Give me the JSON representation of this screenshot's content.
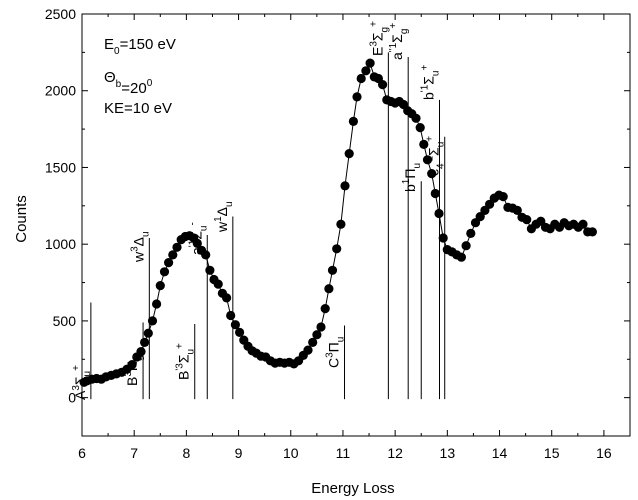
{
  "chart_data": {
    "type": "scatter",
    "title": "",
    "xlabel": "Energy Loss",
    "ylabel": "Counts",
    "xlim": [
      6,
      16.5
    ],
    "ylim": [
      -250,
      2500
    ],
    "x_ticks": [
      6,
      7,
      8,
      9,
      10,
      11,
      12,
      13,
      14,
      15,
      16
    ],
    "y_ticks": [
      0,
      500,
      1000,
      1500,
      2000,
      2500
    ],
    "x_tick_labels": [
      "6",
      "7",
      "8",
      "9",
      "10",
      "11",
      "12",
      "13",
      "14",
      "15",
      "16"
    ],
    "y_tick_labels": [
      "0",
      "500",
      "1000",
      "1500",
      "2000",
      "2500"
    ],
    "grid": false,
    "legend": "none",
    "marker_color": "#000000",
    "annotations": [
      "E0=150 eV",
      "Θb=20°",
      "KE=10 eV"
    ],
    "transitions": [
      {
        "label": "A3Σu+",
        "x": 6.17,
        "top": 620
      },
      {
        "label": "B3Πg",
        "x": 7.17,
        "top": 490
      },
      {
        "label": "w3Δu",
        "x": 7.29,
        "top": 1040
      },
      {
        "label": "B'3Σu+",
        "x": 8.16,
        "top": 480
      },
      {
        "label": "a'1Σu-",
        "x": 8.4,
        "top": 1060
      },
      {
        "label": "w1Δu",
        "x": 8.89,
        "top": 1180
      },
      {
        "label": "C3Πu",
        "x": 11.03,
        "top": 470
      },
      {
        "label": "E3Σg+",
        "x": 11.87,
        "top": 2250
      },
      {
        "label": "a''1Σg+",
        "x": 12.25,
        "top": 2220
      },
      {
        "label": "b1Πu",
        "x": 12.5,
        "top": 1410
      },
      {
        "label": "b'1Σu+",
        "x": 12.85,
        "top": 1940
      },
      {
        "label": "c4'1Σu+",
        "x": 12.95,
        "top": 1700
      }
    ],
    "series": [
      {
        "marker": "circle",
        "points": [
          [
            6.04,
            100
          ],
          [
            6.1,
            110
          ],
          [
            6.19,
            120
          ],
          [
            6.28,
            125
          ],
          [
            6.37,
            120
          ],
          [
            6.46,
            135
          ],
          [
            6.56,
            145
          ],
          [
            6.66,
            155
          ],
          [
            6.76,
            165
          ],
          [
            6.86,
            185
          ],
          [
            6.96,
            215
          ],
          [
            7.05,
            265
          ],
          [
            7.13,
            300
          ],
          [
            7.2,
            360
          ],
          [
            7.27,
            420
          ],
          [
            7.35,
            500
          ],
          [
            7.43,
            610
          ],
          [
            7.5,
            730
          ],
          [
            7.58,
            820
          ],
          [
            7.66,
            880
          ],
          [
            7.74,
            930
          ],
          [
            7.82,
            980
          ],
          [
            7.9,
            1030
          ],
          [
            7.98,
            1050
          ],
          [
            8.06,
            1055
          ],
          [
            8.14,
            1040
          ],
          [
            8.21,
            1005
          ],
          [
            8.29,
            960
          ],
          [
            8.37,
            930
          ],
          [
            8.45,
            830
          ],
          [
            8.53,
            770
          ],
          [
            8.61,
            740
          ],
          [
            8.69,
            680
          ],
          [
            8.77,
            650
          ],
          [
            8.85,
            535
          ],
          [
            8.94,
            475
          ],
          [
            9.02,
            425
          ],
          [
            9.1,
            375
          ],
          [
            9.18,
            335
          ],
          [
            9.26,
            305
          ],
          [
            9.34,
            290
          ],
          [
            9.43,
            270
          ],
          [
            9.52,
            265
          ],
          [
            9.61,
            240
          ],
          [
            9.7,
            225
          ],
          [
            9.79,
            230
          ],
          [
            9.88,
            225
          ],
          [
            9.97,
            230
          ],
          [
            10.06,
            220
          ],
          [
            10.15,
            240
          ],
          [
            10.24,
            275
          ],
          [
            10.33,
            310
          ],
          [
            10.42,
            360
          ],
          [
            10.5,
            410
          ],
          [
            10.58,
            460
          ],
          [
            10.66,
            580
          ],
          [
            10.73,
            710
          ],
          [
            10.8,
            830
          ],
          [
            10.88,
            970
          ],
          [
            10.96,
            1130
          ],
          [
            11.04,
            1380
          ],
          [
            11.12,
            1590
          ],
          [
            11.2,
            1800
          ],
          [
            11.27,
            1960
          ],
          [
            11.35,
            2080
          ],
          [
            11.44,
            2130
          ],
          [
            11.52,
            2180
          ],
          [
            11.6,
            2090
          ],
          [
            11.68,
            2080
          ],
          [
            11.76,
            2040
          ],
          [
            11.84,
            1940
          ],
          [
            11.92,
            1930
          ],
          [
            12.0,
            1920
          ],
          [
            12.08,
            1930
          ],
          [
            12.16,
            1910
          ],
          [
            12.24,
            1870
          ],
          [
            12.32,
            1850
          ],
          [
            12.4,
            1820
          ],
          [
            12.48,
            1760
          ],
          [
            12.55,
            1650
          ],
          [
            12.62,
            1550
          ],
          [
            12.7,
            1460
          ],
          [
            12.77,
            1330
          ],
          [
            12.84,
            1200
          ],
          [
            12.92,
            1040
          ],
          [
            13.0,
            965
          ],
          [
            13.09,
            950
          ],
          [
            13.18,
            930
          ],
          [
            13.27,
            915
          ],
          [
            13.36,
            990
          ],
          [
            13.45,
            1070
          ],
          [
            13.54,
            1140
          ],
          [
            13.63,
            1180
          ],
          [
            13.72,
            1220
          ],
          [
            13.81,
            1260
          ],
          [
            13.9,
            1300
          ],
          [
            13.99,
            1320
          ],
          [
            14.07,
            1310
          ],
          [
            14.16,
            1240
          ],
          [
            14.25,
            1235
          ],
          [
            14.34,
            1220
          ],
          [
            14.43,
            1175
          ],
          [
            14.52,
            1160
          ],
          [
            14.61,
            1100
          ],
          [
            14.7,
            1130
          ],
          [
            14.79,
            1150
          ],
          [
            14.88,
            1110
          ],
          [
            14.97,
            1100
          ],
          [
            15.06,
            1130
          ],
          [
            15.15,
            1110
          ],
          [
            15.24,
            1140
          ],
          [
            15.33,
            1120
          ],
          [
            15.42,
            1130
          ],
          [
            15.51,
            1110
          ],
          [
            15.6,
            1130
          ],
          [
            15.69,
            1080
          ],
          [
            15.78,
            1080
          ]
        ]
      }
    ]
  }
}
